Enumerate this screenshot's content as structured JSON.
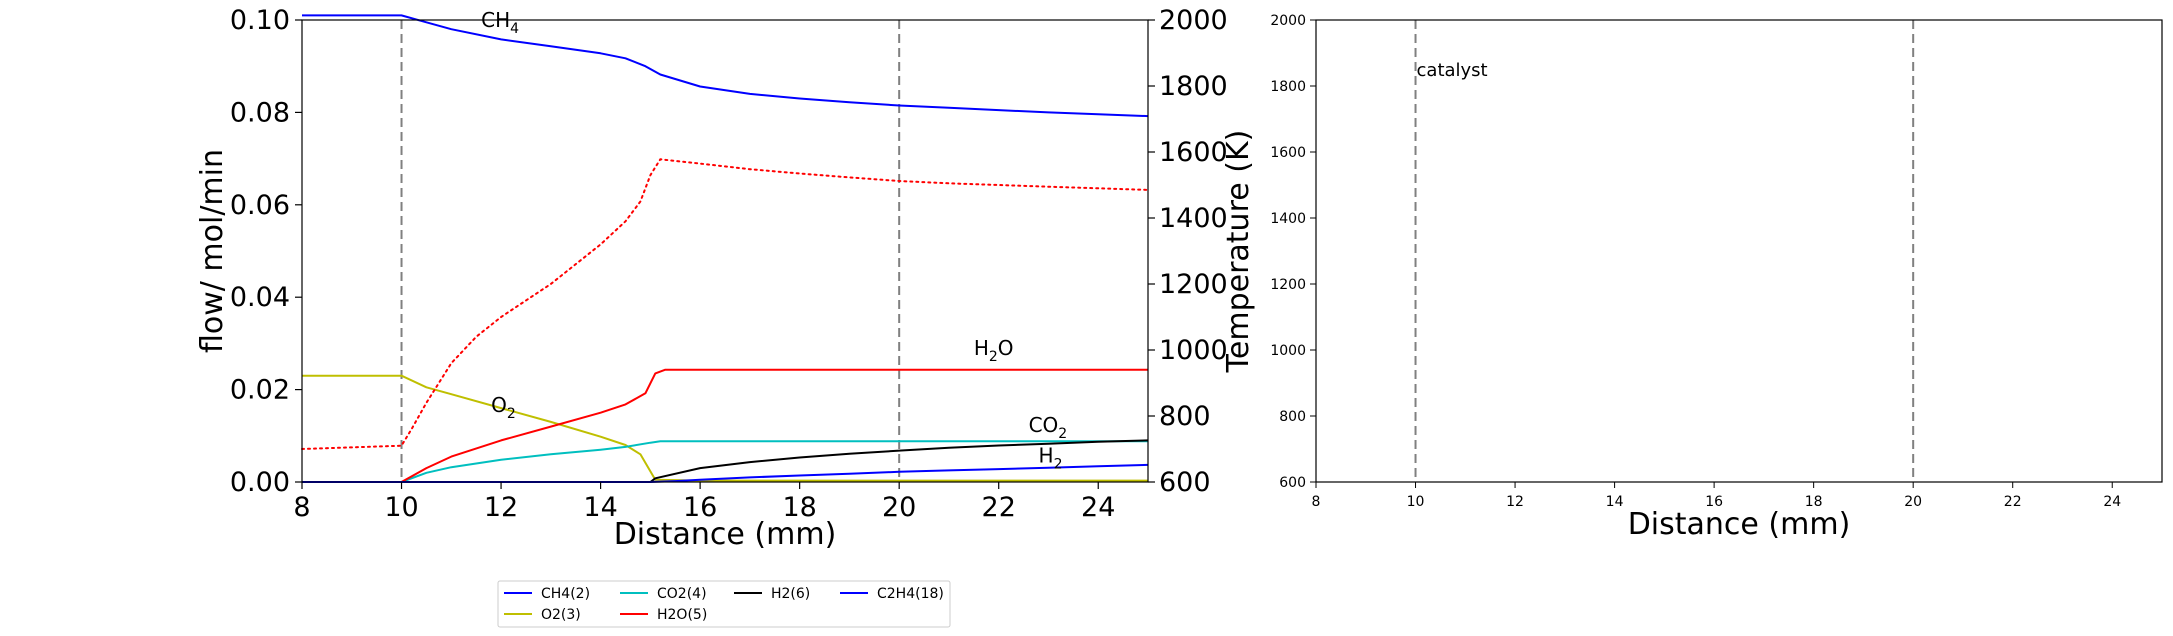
{
  "chart_data": [
    {
      "type": "line",
      "xlabel": "Distance (mm)",
      "ylabel": "flow/ mol/min",
      "y2label": "Temperature (K)",
      "xlim": [
        8,
        25
      ],
      "ylim": [
        0,
        0.1
      ],
      "y2lim": [
        600,
        2000
      ],
      "xticks": [
        "8",
        "10",
        "12",
        "14",
        "16",
        "18",
        "20",
        "22",
        "24"
      ],
      "yticks": [
        "0.00",
        "0.02",
        "0.04",
        "0.06",
        "0.08",
        "0.10"
      ],
      "y2ticks": [
        "600",
        "800",
        "1000",
        "1200",
        "1400",
        "1600",
        "1800",
        "2000"
      ],
      "vlines": [
        10,
        20
      ],
      "series": [
        {
          "name": "CH4(2)",
          "color": "#0000ff",
          "style": "solid",
          "x": [
            8,
            10,
            10.5,
            11,
            12,
            13,
            14,
            14.5,
            14.9,
            15.2,
            16,
            17,
            18,
            19,
            20,
            21,
            22,
            23,
            24,
            25
          ],
          "y": [
            0.101,
            0.101,
            0.0995,
            0.098,
            0.0958,
            0.0943,
            0.0928,
            0.0917,
            0.09,
            0.0882,
            0.0856,
            0.084,
            0.083,
            0.0822,
            0.0815,
            0.081,
            0.0805,
            0.08,
            0.0796,
            0.0792
          ]
        },
        {
          "name": "O2(3)",
          "color": "#bfbf00",
          "style": "solid",
          "x": [
            8,
            10,
            10.5,
            11,
            12,
            13,
            14,
            14.5,
            14.8,
            15.1,
            16,
            18,
            20,
            22,
            24,
            25
          ],
          "y": [
            0.023,
            0.023,
            0.0205,
            0.019,
            0.016,
            0.013,
            0.0098,
            0.008,
            0.006,
            0.0005,
            0.0003,
            0.0003,
            0.0003,
            0.0003,
            0.0003,
            0.0003
          ]
        },
        {
          "name": "CO2(4)",
          "color": "#00bfbf",
          "style": "solid",
          "x": [
            8,
            10,
            10.5,
            11,
            12,
            13,
            14,
            14.5,
            15,
            15.2,
            16,
            18,
            20,
            22,
            24,
            25
          ],
          "y": [
            0,
            0,
            0.002,
            0.0032,
            0.0048,
            0.006,
            0.007,
            0.0076,
            0.0085,
            0.0088,
            0.0088,
            0.0088,
            0.0088,
            0.0088,
            0.0088,
            0.0088
          ]
        },
        {
          "name": "H2O(5)",
          "color": "#ff0000",
          "style": "solid",
          "x": [
            8,
            10,
            10.5,
            11,
            12,
            13,
            14,
            14.5,
            14.9,
            15.1,
            15.3,
            16,
            18,
            20,
            22,
            24,
            25
          ],
          "y": [
            0,
            0,
            0.003,
            0.0055,
            0.009,
            0.012,
            0.015,
            0.0168,
            0.0192,
            0.0235,
            0.0243,
            0.0243,
            0.0243,
            0.0243,
            0.0243,
            0.0243,
            0.0243
          ]
        },
        {
          "name": "H2(6)",
          "color": "#000000",
          "style": "solid",
          "x": [
            8,
            15,
            15.1,
            16,
            17,
            18,
            19,
            20,
            21,
            22,
            23,
            24,
            25
          ],
          "y": [
            0,
            0,
            0.0008,
            0.003,
            0.0043,
            0.0053,
            0.0061,
            0.0068,
            0.0074,
            0.0079,
            0.0083,
            0.0087,
            0.009
          ]
        },
        {
          "name": "C2H4(18)",
          "color": "#0000ff",
          "style": "solid",
          "x": [
            8,
            15,
            15.5,
            16,
            17,
            18,
            19,
            20,
            21,
            22,
            23,
            24,
            25
          ],
          "y": [
            0,
            0,
            0.0002,
            0.0005,
            0.001,
            0.0014,
            0.0018,
            0.0022,
            0.0025,
            0.0028,
            0.0031,
            0.0034,
            0.0037
          ]
        },
        {
          "name": "",
          "axis": "y2",
          "color": "#ff0000",
          "style": "dotted",
          "x": [
            8,
            10,
            10.2,
            10.5,
            11,
            11.5,
            12,
            12.5,
            13,
            13.5,
            14,
            14.5,
            14.8,
            15,
            15.2,
            16,
            17,
            18,
            19,
            20,
            21,
            22,
            23,
            24,
            25
          ],
          "y": [
            700,
            710,
            760,
            840,
            960,
            1040,
            1100,
            1150,
            1200,
            1260,
            1320,
            1390,
            1450,
            1530,
            1578,
            1565,
            1548,
            1535,
            1523,
            1512,
            1505,
            1500,
            1495,
            1490,
            1485
          ]
        }
      ],
      "annotations": [
        {
          "base": "CH",
          "sub": "4",
          "tail": "",
          "x": 11.6,
          "y": 0.0985,
          "color": "#0000ff"
        },
        {
          "base": "H",
          "sub": "2",
          "tail": "O",
          "x": 21.5,
          "y": 0.0275,
          "color": "#ff0000"
        },
        {
          "base": "O",
          "sub": "2",
          "tail": "",
          "x": 11.8,
          "y": 0.0152,
          "color": "#bfbf00"
        },
        {
          "base": "CO",
          "sub": "2",
          "tail": "",
          "x": 22.6,
          "y": 0.0108,
          "color": "#00bfbf"
        },
        {
          "base": "H",
          "sub": "2",
          "tail": "",
          "x": 22.8,
          "y": 0.0042,
          "color": "#000000"
        }
      ],
      "legend": {
        "placement": "bottom-center",
        "entries": [
          {
            "label": "CH4(2)",
            "color": "#0000ff"
          },
          {
            "label": "CO2(4)",
            "color": "#00bfbf"
          },
          {
            "label": "H2(6)",
            "color": "#000000"
          },
          {
            "label": "C2H4(18)",
            "color": "#0000ff"
          },
          {
            "label": "O2(3)",
            "color": "#bfbf00"
          },
          {
            "label": "H2O(5)",
            "color": "#ff0000"
          }
        ]
      }
    },
    {
      "type": "line",
      "xlabel": "Distance (mm)",
      "ylabel": "",
      "xlim": [
        8,
        25
      ],
      "ylim": [
        600,
        2000
      ],
      "xticks": [
        "8",
        "10",
        "12",
        "14",
        "16",
        "18",
        "20",
        "22",
        "24"
      ],
      "yticks": [
        "600",
        "800",
        "1000",
        "1200",
        "1400",
        "1600",
        "1800",
        "2000"
      ],
      "vlines": [
        10,
        20
      ],
      "annotations": [
        {
          "text": "catalyst",
          "x": 10,
          "y": 1830
        }
      ],
      "series": []
    }
  ]
}
